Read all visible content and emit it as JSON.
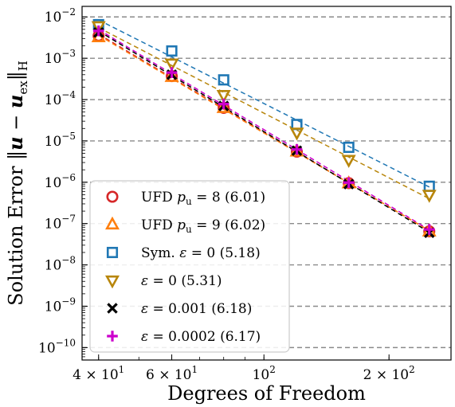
{
  "chart_data": {
    "type": "scatter",
    "xlabel": "Degrees of Freedom",
    "ylabel": "Solution Error ‖u − u_ex‖_H",
    "xscale": "log",
    "yscale": "log",
    "xlim": [
      36.5,
      282
    ],
    "ylim": [
      5e-11,
      0.018
    ],
    "x_ticks": [
      {
        "value": 40,
        "mant": "4",
        "exp": "1"
      },
      {
        "value": 60,
        "mant": "6",
        "exp": "1"
      },
      {
        "value": 100,
        "mant": "",
        "exp": "2"
      },
      {
        "value": 200,
        "mant": "2",
        "exp": "2"
      }
    ],
    "y_ticks": [
      {
        "value": 0.01,
        "exp": "−2"
      },
      {
        "value": 0.001,
        "exp": "−3"
      },
      {
        "value": 0.0001,
        "exp": "−4"
      },
      {
        "value": 1e-05,
        "exp": "−5"
      },
      {
        "value": 1e-06,
        "exp": "−6"
      },
      {
        "value": 1e-07,
        "exp": "−7"
      },
      {
        "value": 1e-08,
        "exp": "−8"
      },
      {
        "value": 1e-09,
        "exp": "−9"
      },
      {
        "value": 1e-10,
        "exp": "−10"
      }
    ],
    "grid": "horizontal dashed at major y ticks",
    "legend_position": "lower-left",
    "x": [
      40,
      60,
      80,
      120,
      160,
      250
    ],
    "series": [
      {
        "name": "UFD p_u = 8 (6.01)",
        "legend_main": "UFD ",
        "legend_var": "p",
        "legend_sub": "u",
        "legend_rest": " = 8 (6.01)",
        "marker": "circle",
        "color": "#d62728",
        "values": [
          0.0035,
          0.00037,
          6.3e-05,
          5.5e-06,
          9.5e-07,
          6.5e-08
        ]
      },
      {
        "name": "UFD p_u = 9 (6.02)",
        "legend_main": "UFD ",
        "legend_var": "p",
        "legend_sub": "u",
        "legend_rest": " = 9 (6.02)",
        "marker": "triangle-up",
        "color": "#ff7f0e",
        "values": [
          0.0032,
          0.00035,
          6.2e-05,
          5.5e-06,
          9.3e-07,
          6.4e-08
        ]
      },
      {
        "name": "Sym. ε = 0 (5.18)",
        "legend_main": "Sym. ",
        "legend_var": "ε",
        "legend_sub": "",
        "legend_rest": " = 0 (5.18)",
        "marker": "square",
        "color": "#1f77b4",
        "values": [
          0.0065,
          0.0015,
          0.0003,
          2.5e-05,
          7e-06,
          8e-07
        ]
      },
      {
        "name": "ε = 0 (5.31)",
        "legend_main": "",
        "legend_var": "ε",
        "legend_sub": "",
        "legend_rest": " = 0 (5.31)",
        "marker": "triangle-down",
        "color": "#b8860b",
        "values": [
          0.006,
          0.00075,
          0.00013,
          1.6e-05,
          3.5e-06,
          5e-07
        ]
      },
      {
        "name": "ε = 0.001 (6.18)",
        "legend_main": "",
        "legend_var": "ε",
        "legend_sub": "",
        "legend_rest": " = 0.001 (6.18)",
        "marker": "x",
        "color": "#000000",
        "values": [
          0.0042,
          0.0004,
          7e-05,
          5.8e-06,
          9e-07,
          6e-08
        ]
      },
      {
        "name": "ε = 0.0002 (6.17)",
        "legend_main": "",
        "legend_var": "ε",
        "legend_sub": "",
        "legend_rest": " = 0.0002 (6.17)",
        "marker": "plus",
        "color": "#cc00cc",
        "values": [
          0.0046,
          0.00045,
          7.8e-05,
          6.2e-06,
          9.8e-07,
          7.2e-08
        ]
      }
    ]
  }
}
